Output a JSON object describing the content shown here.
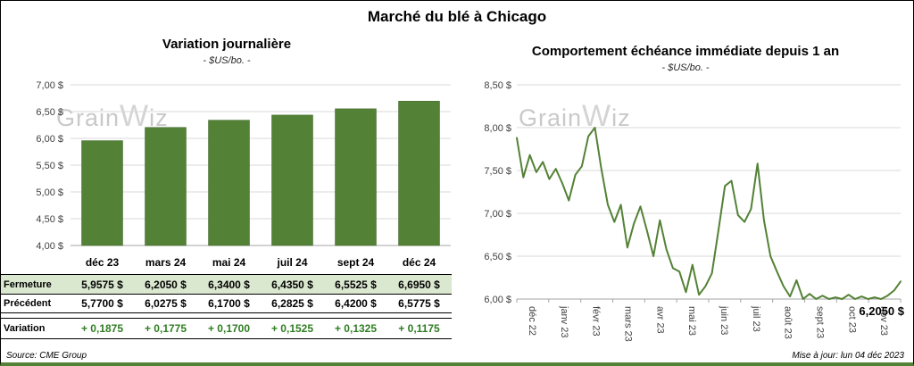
{
  "page": {
    "title": "Marché du blé à Chicago",
    "source": "Source: CME Group",
    "updated": "Mise à jour: lun 04 déc 2023",
    "watermark_grain": "Grain",
    "watermark_w": "W",
    "watermark_iz": "iz"
  },
  "colors": {
    "bar": "#538135",
    "bar_edge": "#41672a",
    "line": "#538135",
    "grid": "#d9d9d9",
    "axis": "#a6a6a6",
    "highlight_row": "#dbe8d0",
    "variation_text": "#2f7d22"
  },
  "chart_data": [
    {
      "type": "bar",
      "title": "Variation journalière",
      "subtitle": "- $US/bo. -",
      "categories": [
        "déc 23",
        "mars 24",
        "mai 24",
        "juil 24",
        "sept 24",
        "déc 24"
      ],
      "values": [
        5.9575,
        6.205,
        6.34,
        6.435,
        6.5525,
        6.695
      ],
      "ylim": [
        4.0,
        7.0
      ],
      "ytick_labels": [
        "4,00 $",
        "4,50 $",
        "5,00 $",
        "5,50 $",
        "6,00 $",
        "6,50 $",
        "7,00 $"
      ],
      "grid": true,
      "legend": "none"
    },
    {
      "type": "line",
      "title": "Comportement échéance immédiate depuis 1 an",
      "subtitle": "- $US/bo. -",
      "x_labels": [
        "déc 22",
        "janv 23",
        "févr 23",
        "mars 23",
        "avr 23",
        "mai 23",
        "juin 23",
        "juil 23",
        "août 23",
        "sept 23",
        "oct 23",
        "nov 23"
      ],
      "values": [
        7.88,
        7.42,
        7.68,
        7.48,
        7.6,
        7.4,
        7.52,
        7.35,
        7.15,
        7.45,
        7.55,
        7.9,
        8.0,
        7.52,
        7.1,
        6.9,
        7.1,
        6.6,
        6.88,
        7.08,
        6.8,
        6.5,
        6.92,
        6.58,
        6.36,
        6.32,
        6.08,
        6.4,
        6.05,
        6.15,
        6.3,
        6.8,
        7.32,
        7.38,
        6.98,
        6.9,
        7.05,
        7.58,
        6.92,
        6.5,
        6.32,
        6.15,
        6.03,
        6.22,
        6.0,
        6.06,
        5.98,
        6.04,
        5.97,
        6.02,
        6.0,
        6.05,
        5.98,
        6.03,
        5.99,
        6.02,
        5.98,
        6.04,
        6.1,
        6.205
      ],
      "ylim": [
        6.0,
        8.5
      ],
      "ytick_labels": [
        "6,00 $",
        "6,50 $",
        "7,00 $",
        "7,50 $",
        "8,00 $",
        "8,50 $"
      ],
      "last_label": "6,2050 $",
      "grid": true,
      "legend": "none"
    }
  ],
  "table": {
    "rows": [
      {
        "label": "Fermeture",
        "values": [
          "5,9575 $",
          "6,2050 $",
          "6,3400 $",
          "6,4350 $",
          "6,5525 $",
          "6,6950 $"
        ],
        "highlight": true,
        "green": false
      },
      {
        "label": "Précédent",
        "values": [
          "5,7700 $",
          "6,0275 $",
          "6,1700 $",
          "6,2825 $",
          "6,4200 $",
          "6,5775 $"
        ],
        "highlight": false,
        "green": false
      },
      {
        "label": "Variation",
        "values": [
          "+ 0,1875",
          "+ 0,1775",
          "+ 0,1700",
          "+ 0,1525",
          "+ 0,1325",
          "+ 0,1175"
        ],
        "highlight": false,
        "green": true
      }
    ]
  }
}
